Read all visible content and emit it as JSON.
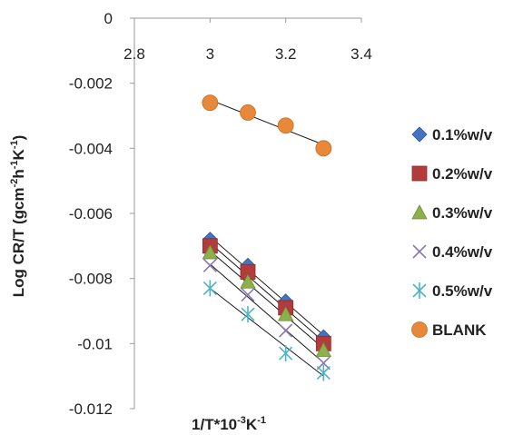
{
  "chart_data": {
    "type": "scatter",
    "title": "",
    "xlabel": "1/T*10",
    "xlabel_exponent": "-3",
    "xlabel_unit": "K",
    "xlabel_unit_exponent": "-1",
    "ylabel": "Log CR/T (gcm",
    "ylabel_exp1": "-2",
    "ylabel_mid": "h",
    "ylabel_exp2": "-1",
    "ylabel_mid2": "K",
    "ylabel_exp3": "-1",
    "ylabel_end": ")",
    "xlim": [
      2.8,
      3.4
    ],
    "ylim": [
      -0.012,
      0
    ],
    "x_ticks": [
      2.8,
      3,
      3.2,
      3.4
    ],
    "x_tick_labels": [
      "2.8",
      "3",
      "3.2",
      "3.4"
    ],
    "y_ticks": [
      0,
      -0.002,
      -0.004,
      -0.006,
      -0.008,
      -0.01,
      -0.012
    ],
    "y_tick_labels": [
      "0",
      "-0.002",
      "-0.004",
      "-0.006",
      "-0.008",
      "-0.01",
      "-0.012"
    ],
    "x_axis_crosses_at_top": true,
    "grid": false,
    "legend_position": "right",
    "trendlines": true,
    "x": [
      3.0,
      3.1,
      3.2,
      3.3
    ],
    "series": [
      {
        "name": "0.1%w/v",
        "marker": "diamond",
        "color": "#4472c4",
        "values": [
          -0.0068,
          -0.0076,
          -0.0087,
          -0.0098
        ]
      },
      {
        "name": "0.2%w/v",
        "marker": "square",
        "color": "#b23c3c",
        "values": [
          -0.007,
          -0.0078,
          -0.0089,
          -0.01
        ]
      },
      {
        "name": "0.3%w/v",
        "marker": "triangle",
        "color": "#8cb04a",
        "values": [
          -0.0072,
          -0.0081,
          -0.0091,
          -0.0102
        ]
      },
      {
        "name": "0.4%w/v",
        "marker": "x",
        "color": "#8a78b0",
        "values": [
          -0.0076,
          -0.0085,
          -0.0096,
          -0.0106
        ]
      },
      {
        "name": "0.5%w/v",
        "marker": "star",
        "color": "#4fb3c8",
        "values": [
          -0.0083,
          -0.0091,
          -0.0103,
          -0.0109
        ]
      },
      {
        "name": "BLANK",
        "marker": "circle",
        "color": "#e8883a",
        "values": [
          -0.0026,
          -0.0029,
          -0.0033,
          -0.004
        ]
      }
    ]
  }
}
